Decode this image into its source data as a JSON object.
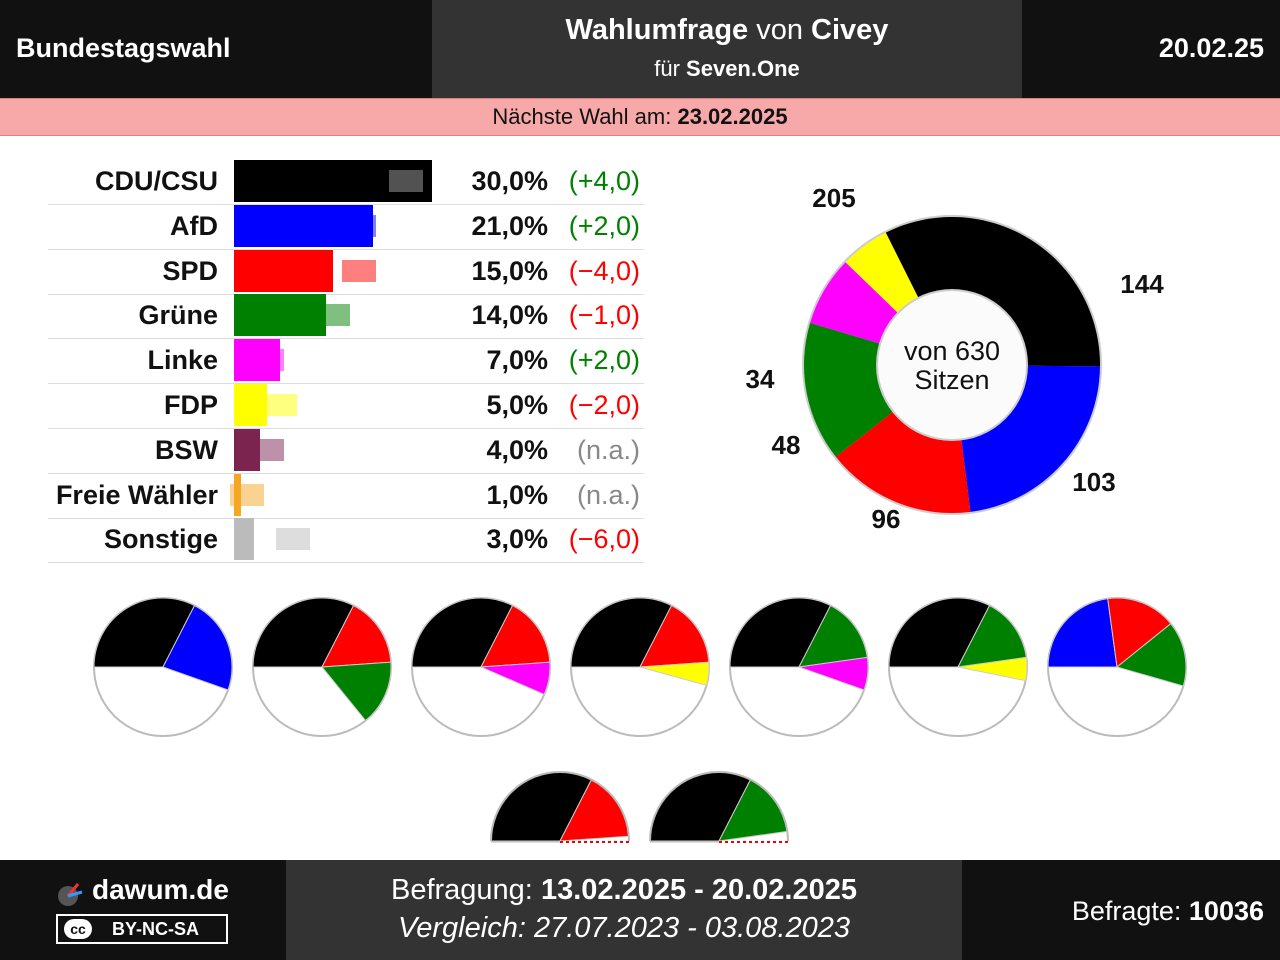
{
  "header": {
    "left": "Bundestagswahl",
    "title_main": "Wahlumfrage",
    "title_von": "von",
    "title_institute": "Civey",
    "subtitle_fuer": "für",
    "subtitle_client": "Seven.One",
    "date": "20.02.25"
  },
  "next_election": {
    "label": "Nächste Wahl am:",
    "date": "23.02.2025"
  },
  "chart_data": [
    {
      "type": "bar",
      "categories": [
        "CDU/CSU",
        "AfD",
        "SPD",
        "Grüne",
        "Linke",
        "FDP",
        "BSW",
        "Freie Wähler",
        "Sonstige"
      ],
      "values": [
        30.0,
        21.0,
        15.0,
        14.0,
        7.0,
        5.0,
        4.0,
        1.0,
        3.0
      ],
      "previous_values": [
        26.0,
        19.0,
        19.0,
        15.0,
        5.0,
        7.0,
        null,
        null,
        9.0
      ],
      "labels": [
        "30,0%",
        "21,0%",
        "15,0%",
        "14,0%",
        "7,0%",
        "5,0%",
        "4,0%",
        "1,0%",
        "3,0%"
      ],
      "diff_labels": [
        "(+4,0)",
        "(+2,0)",
        "(−4,0)",
        "(−1,0)",
        "(+2,0)",
        "(−2,0)",
        "(n.a.)",
        "(n.a.)",
        "(−6,0)"
      ],
      "colors": [
        "#000000",
        "#0000ff",
        "#ff0000",
        "#008000",
        "#ff00ff",
        "#ffff00",
        "#7b2450",
        "#f5a623",
        "#bbbbbb"
      ],
      "diff_colors": [
        "#008000",
        "#008000",
        "#ff0000",
        "#ff0000",
        "#008000",
        "#ff0000",
        "#888888",
        "#888888",
        "#ff0000"
      ]
    },
    {
      "type": "pie",
      "center_label_1": "von 630",
      "center_label_2": "Sitzen",
      "total": 630,
      "categories": [
        "CDU/CSU",
        "AfD",
        "SPD",
        "Grüne",
        "Linke",
        "FDP"
      ],
      "values": [
        205,
        144,
        103,
        96,
        48,
        34
      ],
      "labels": [
        "205",
        "144",
        "103",
        "96",
        "48",
        "34"
      ],
      "colors": [
        "#000000",
        "#0000ff",
        "#ff0000",
        "#008000",
        "#ff00ff",
        "#ffff00"
      ]
    },
    {
      "type": "pie",
      "subtype": "coalition-semicircles",
      "majority": 316,
      "coalitions": [
        {
          "parties": [
            "CDU/CSU",
            "AfD"
          ],
          "seats": [
            205,
            144
          ],
          "colors": [
            "#000000",
            "#0000ff"
          ]
        },
        {
          "parties": [
            "CDU/CSU",
            "SPD",
            "Grüne"
          ],
          "seats": [
            205,
            103,
            96
          ],
          "colors": [
            "#000000",
            "#ff0000",
            "#008000"
          ]
        },
        {
          "parties": [
            "CDU/CSU",
            "SPD",
            "Linke"
          ],
          "seats": [
            205,
            103,
            48
          ],
          "colors": [
            "#000000",
            "#ff0000",
            "#ff00ff"
          ]
        },
        {
          "parties": [
            "CDU/CSU",
            "SPD",
            "FDP"
          ],
          "seats": [
            205,
            103,
            34
          ],
          "colors": [
            "#000000",
            "#ff0000",
            "#ffff00"
          ]
        },
        {
          "parties": [
            "CDU/CSU",
            "Grüne",
            "Linke"
          ],
          "seats": [
            205,
            96,
            48
          ],
          "colors": [
            "#000000",
            "#008000",
            "#ff00ff"
          ]
        },
        {
          "parties": [
            "CDU/CSU",
            "Grüne",
            "FDP"
          ],
          "seats": [
            205,
            96,
            34
          ],
          "colors": [
            "#000000",
            "#008000",
            "#ffff00"
          ]
        },
        {
          "parties": [
            "AfD",
            "SPD",
            "Grüne"
          ],
          "seats": [
            144,
            103,
            96
          ],
          "colors": [
            "#0000ff",
            "#ff0000",
            "#008000"
          ]
        },
        {
          "parties": [
            "CDU/CSU",
            "SPD"
          ],
          "seats": [
            205,
            103
          ],
          "colors": [
            "#000000",
            "#ff0000"
          ]
        },
        {
          "parties": [
            "CDU/CSU",
            "Grüne"
          ],
          "seats": [
            205,
            96
          ],
          "colors": [
            "#000000",
            "#008000"
          ]
        }
      ]
    }
  ],
  "footer": {
    "site": "dawum.de",
    "license": "BY-NC-SA",
    "license_cc": "cc",
    "befragung_label": "Befragung:",
    "befragung_range": "13.02.2025 - 20.02.2025",
    "vergleich": "Vergleich: 27.07.2023 - 03.08.2023",
    "befragte_label": "Befragte:",
    "befragte_value": "10036"
  }
}
